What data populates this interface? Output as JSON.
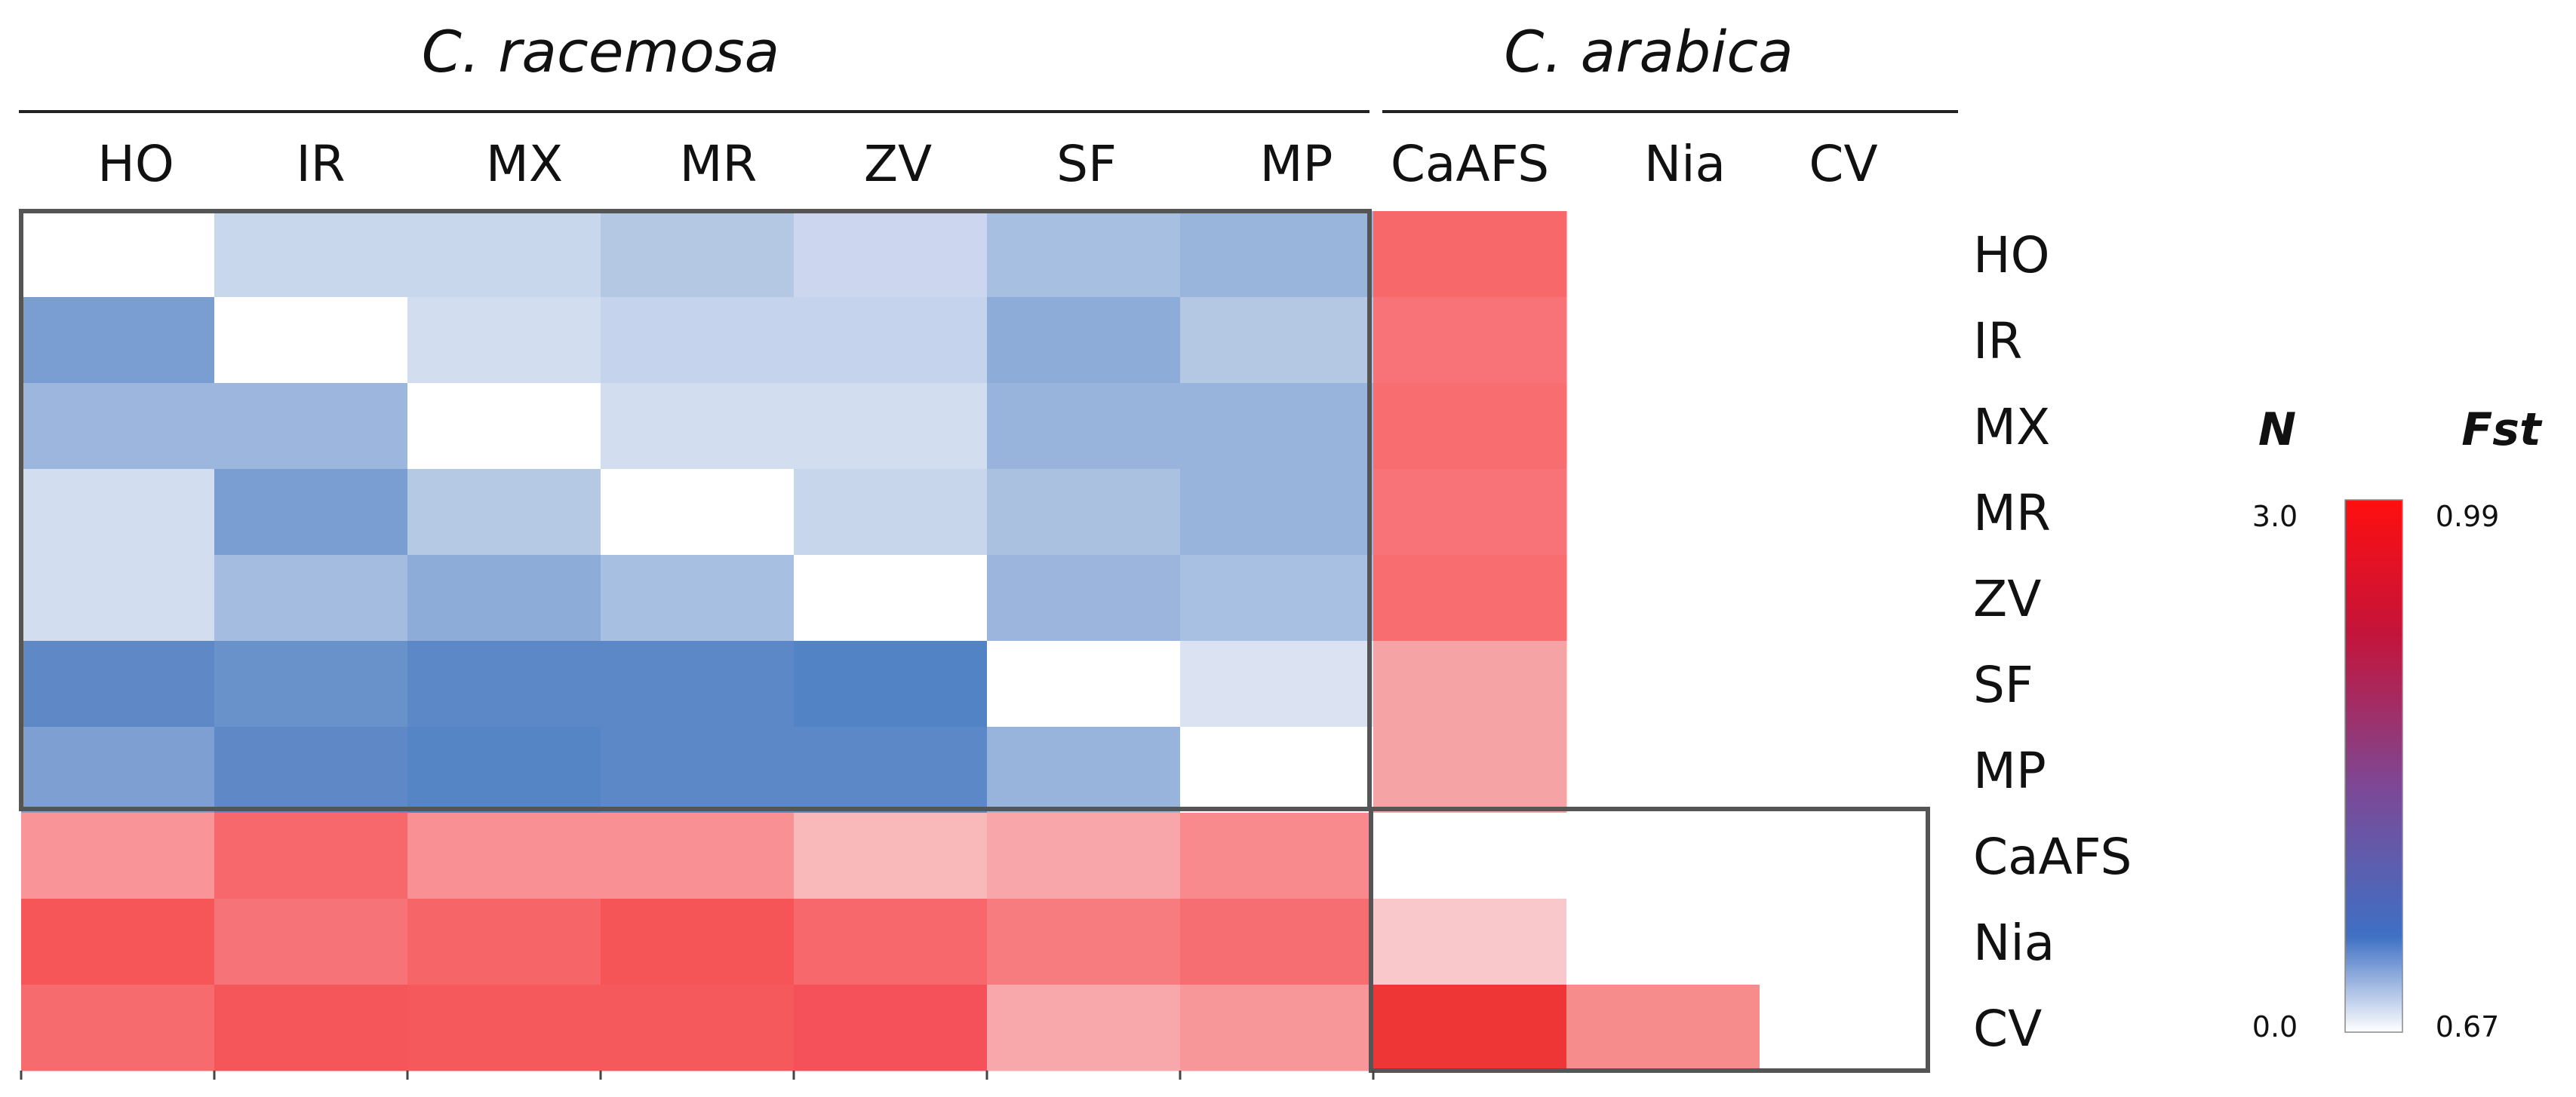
{
  "chart_data": {
    "type": "heatmap",
    "groups": [
      {
        "name": "C. racemosa",
        "members": [
          "HO",
          "IR",
          "MX",
          "MR",
          "ZV",
          "SF",
          "MP"
        ]
      },
      {
        "name": "C. arabica",
        "members": [
          "CaAFS",
          "Nia",
          "CV"
        ]
      }
    ],
    "columns": [
      "HO",
      "IR",
      "MX",
      "MR",
      "ZV",
      "SF",
      "MP",
      "CaAFS",
      "Nia",
      "CV"
    ],
    "rows": [
      "HO",
      "IR",
      "MX",
      "MR",
      "ZV",
      "SF",
      "MP",
      "CaAFS",
      "Nia",
      "CV"
    ],
    "layout": "lower triangle = N (migration), upper triangle = Fst; shown cells only",
    "n_scale": {
      "label": "N",
      "min": 0.0,
      "max": 3.0,
      "min_label": "0.0",
      "max_label": "3.0"
    },
    "fst_scale": {
      "label": "Fst",
      "min": 0.67,
      "max": 0.99,
      "min_label": "0.67",
      "max_label": "0.99"
    },
    "colorbar": {
      "stops": [
        "#ffffff",
        "#3f70c4",
        "#7a4a98",
        "#c4143a",
        "#ff0f0f"
      ]
    },
    "box_colors": {
      "racemosa_block": "#555555",
      "arabica_block": "#555555"
    },
    "cells": [
      {
        "row": "HO",
        "col": "HO",
        "value": null,
        "color": "#ffffff"
      },
      {
        "row": "HO",
        "col": "IR",
        "value": 0.78,
        "color": "#c9d7ec"
      },
      {
        "row": "HO",
        "col": "MX",
        "value": 0.78,
        "color": "#c9d7ec"
      },
      {
        "row": "HO",
        "col": "MR",
        "value": 0.76,
        "color": "#b4c8e4"
      },
      {
        "row": "HO",
        "col": "ZV",
        "value": 0.79,
        "color": "#ccd6ee"
      },
      {
        "row": "HO",
        "col": "SF",
        "value": 0.75,
        "color": "#a7bfe0"
      },
      {
        "row": "HO",
        "col": "MP",
        "value": 0.74,
        "color": "#9ab5dc"
      },
      {
        "row": "HO",
        "col": "CaAFS",
        "value": 0.9,
        "color": "#f7686b"
      },
      {
        "row": "IR",
        "col": "HO",
        "value": 1.9,
        "color": "#7a9ed2"
      },
      {
        "row": "IR",
        "col": "IR",
        "value": null,
        "color": "#ffffff"
      },
      {
        "row": "IR",
        "col": "MX",
        "value": 0.79,
        "color": "#d2ddf0"
      },
      {
        "row": "IR",
        "col": "MR",
        "value": 0.78,
        "color": "#c5d4ec"
      },
      {
        "row": "IR",
        "col": "ZV",
        "value": 0.78,
        "color": "#c5d4ec"
      },
      {
        "row": "IR",
        "col": "SF",
        "value": 0.74,
        "color": "#8eacd8"
      },
      {
        "row": "IR",
        "col": "MP",
        "value": 0.76,
        "color": "#b4c8e4"
      },
      {
        "row": "IR",
        "col": "CaAFS",
        "value": 0.89,
        "color": "#f77377"
      },
      {
        "row": "MX",
        "col": "HO",
        "value": 1.4,
        "color": "#9db6de"
      },
      {
        "row": "MX",
        "col": "IR",
        "value": 1.4,
        "color": "#9db6de"
      },
      {
        "row": "MX",
        "col": "MX",
        "value": null,
        "color": "#ffffff"
      },
      {
        "row": "MX",
        "col": "MR",
        "value": 0.79,
        "color": "#d2ddf0"
      },
      {
        "row": "MX",
        "col": "ZV",
        "value": 0.79,
        "color": "#d2ddf0"
      },
      {
        "row": "MX",
        "col": "SF",
        "value": 0.74,
        "color": "#99b4dc"
      },
      {
        "row": "MX",
        "col": "MP",
        "value": 0.74,
        "color": "#99b4dc"
      },
      {
        "row": "MX",
        "col": "CaAFS",
        "value": 0.9,
        "color": "#f76d70"
      },
      {
        "row": "MR",
        "col": "HO",
        "value": 0.6,
        "color": "#d3ddf0"
      },
      {
        "row": "MR",
        "col": "IR",
        "value": 1.9,
        "color": "#7a9ed2"
      },
      {
        "row": "MR",
        "col": "MX",
        "value": 1.0,
        "color": "#b5c9e5"
      },
      {
        "row": "MR",
        "col": "MR",
        "value": null,
        "color": "#ffffff"
      },
      {
        "row": "MR",
        "col": "ZV",
        "value": 0.78,
        "color": "#c8d6ec"
      },
      {
        "row": "MR",
        "col": "SF",
        "value": 0.75,
        "color": "#aac2e0"
      },
      {
        "row": "MR",
        "col": "MP",
        "value": 0.74,
        "color": "#99b4dc"
      },
      {
        "row": "MR",
        "col": "CaAFS",
        "value": 0.89,
        "color": "#f77377"
      },
      {
        "row": "ZV",
        "col": "HO",
        "value": 0.6,
        "color": "#d3ddf0"
      },
      {
        "row": "ZV",
        "col": "IR",
        "value": 1.3,
        "color": "#a3bce0"
      },
      {
        "row": "ZV",
        "col": "MX",
        "value": 1.5,
        "color": "#8eacd8"
      },
      {
        "row": "ZV",
        "col": "MR",
        "value": 1.2,
        "color": "#a7bfe1"
      },
      {
        "row": "ZV",
        "col": "ZV",
        "value": null,
        "color": "#ffffff"
      },
      {
        "row": "ZV",
        "col": "SF",
        "value": 0.74,
        "color": "#9bb5dc"
      },
      {
        "row": "ZV",
        "col": "MP",
        "value": 0.75,
        "color": "#a8c0e1"
      },
      {
        "row": "ZV",
        "col": "CaAFS",
        "value": 0.9,
        "color": "#f76d70"
      },
      {
        "row": "SF",
        "col": "HO",
        "value": 2.4,
        "color": "#5e89c6"
      },
      {
        "row": "SF",
        "col": "IR",
        "value": 2.2,
        "color": "#6a92ca"
      },
      {
        "row": "SF",
        "col": "MX",
        "value": 2.4,
        "color": "#5d88c7"
      },
      {
        "row": "SF",
        "col": "MR",
        "value": 2.4,
        "color": "#5d88c7"
      },
      {
        "row": "SF",
        "col": "ZV",
        "value": 2.6,
        "color": "#5283c4"
      },
      {
        "row": "SF",
        "col": "SF",
        "value": null,
        "color": "#ffffff"
      },
      {
        "row": "SF",
        "col": "MP",
        "value": 0.79,
        "color": "#dbe3f3"
      },
      {
        "row": "SF",
        "col": "CaAFS",
        "value": 0.82,
        "color": "#f6a3a6"
      },
      {
        "row": "MP",
        "col": "HO",
        "value": 1.8,
        "color": "#7d9fd1"
      },
      {
        "row": "MP",
        "col": "IR",
        "value": 2.4,
        "color": "#5e89c6"
      },
      {
        "row": "MP",
        "col": "MX",
        "value": 2.5,
        "color": "#5685c6"
      },
      {
        "row": "MP",
        "col": "MR",
        "value": 2.4,
        "color": "#5d88c7"
      },
      {
        "row": "MP",
        "col": "ZV",
        "value": 2.4,
        "color": "#5d88c7"
      },
      {
        "row": "MP",
        "col": "SF",
        "value": 1.4,
        "color": "#98b3dc"
      },
      {
        "row": "MP",
        "col": "MP",
        "value": null,
        "color": "#ffffff"
      },
      {
        "row": "MP",
        "col": "CaAFS",
        "value": 0.82,
        "color": "#f6a3a6"
      },
      {
        "row": "CaAFS",
        "col": "HO",
        "value": 0.84,
        "color": "#f99598"
      },
      {
        "row": "CaAFS",
        "col": "IR",
        "value": 0.89,
        "color": "#f6686b"
      },
      {
        "row": "CaAFS",
        "col": "MX",
        "value": 0.85,
        "color": "#f99194"
      },
      {
        "row": "CaAFS",
        "col": "MR",
        "value": 0.85,
        "color": "#f99194"
      },
      {
        "row": "CaAFS",
        "col": "ZV",
        "value": 0.79,
        "color": "#f9b9bb"
      },
      {
        "row": "CaAFS",
        "col": "SF",
        "value": 0.82,
        "color": "#f8a6aa"
      },
      {
        "row": "CaAFS",
        "col": "MP",
        "value": 0.85,
        "color": "#f8898c"
      },
      {
        "row": "CaAFS",
        "col": "CaAFS",
        "value": null,
        "color": "#ffffff"
      },
      {
        "row": "Nia",
        "col": "HO",
        "value": 0.91,
        "color": "#f75659"
      },
      {
        "row": "Nia",
        "col": "IR",
        "value": 0.88,
        "color": "#f67377"
      },
      {
        "row": "Nia",
        "col": "MX",
        "value": 0.9,
        "color": "#f66669"
      },
      {
        "row": "Nia",
        "col": "MR",
        "value": 0.92,
        "color": "#f65558"
      },
      {
        "row": "Nia",
        "col": "ZV",
        "value": 0.9,
        "color": "#f6686b"
      },
      {
        "row": "Nia",
        "col": "SF",
        "value": 0.87,
        "color": "#f77c80"
      },
      {
        "row": "Nia",
        "col": "MP",
        "value": 0.89,
        "color": "#f66e71"
      },
      {
        "row": "Nia",
        "col": "CaAFS",
        "value": 0.76,
        "color": "#f9c8ca"
      },
      {
        "row": "Nia",
        "col": "Nia",
        "value": null,
        "color": "#ffffff"
      },
      {
        "row": "CV",
        "col": "HO",
        "value": 0.89,
        "color": "#f66b6e"
      },
      {
        "row": "CV",
        "col": "IR",
        "value": 0.92,
        "color": "#f45659"
      },
      {
        "row": "CV",
        "col": "MX",
        "value": 0.91,
        "color": "#f5595c"
      },
      {
        "row": "CV",
        "col": "MR",
        "value": 0.91,
        "color": "#f5595c"
      },
      {
        "row": "CV",
        "col": "ZV",
        "value": 0.93,
        "color": "#f5515a"
      },
      {
        "row": "CV",
        "col": "SF",
        "value": 0.81,
        "color": "#f8a8ab"
      },
      {
        "row": "CV",
        "col": "MP",
        "value": 0.84,
        "color": "#f8979a"
      },
      {
        "row": "CV",
        "col": "CaAFS",
        "value": 0.97,
        "color": "#ef3636"
      },
      {
        "row": "CV",
        "col": "Nia",
        "value": 0.85,
        "color": "#f78c8d"
      },
      {
        "row": "CV",
        "col": "CV",
        "value": null,
        "color": "#ffffff"
      }
    ]
  }
}
